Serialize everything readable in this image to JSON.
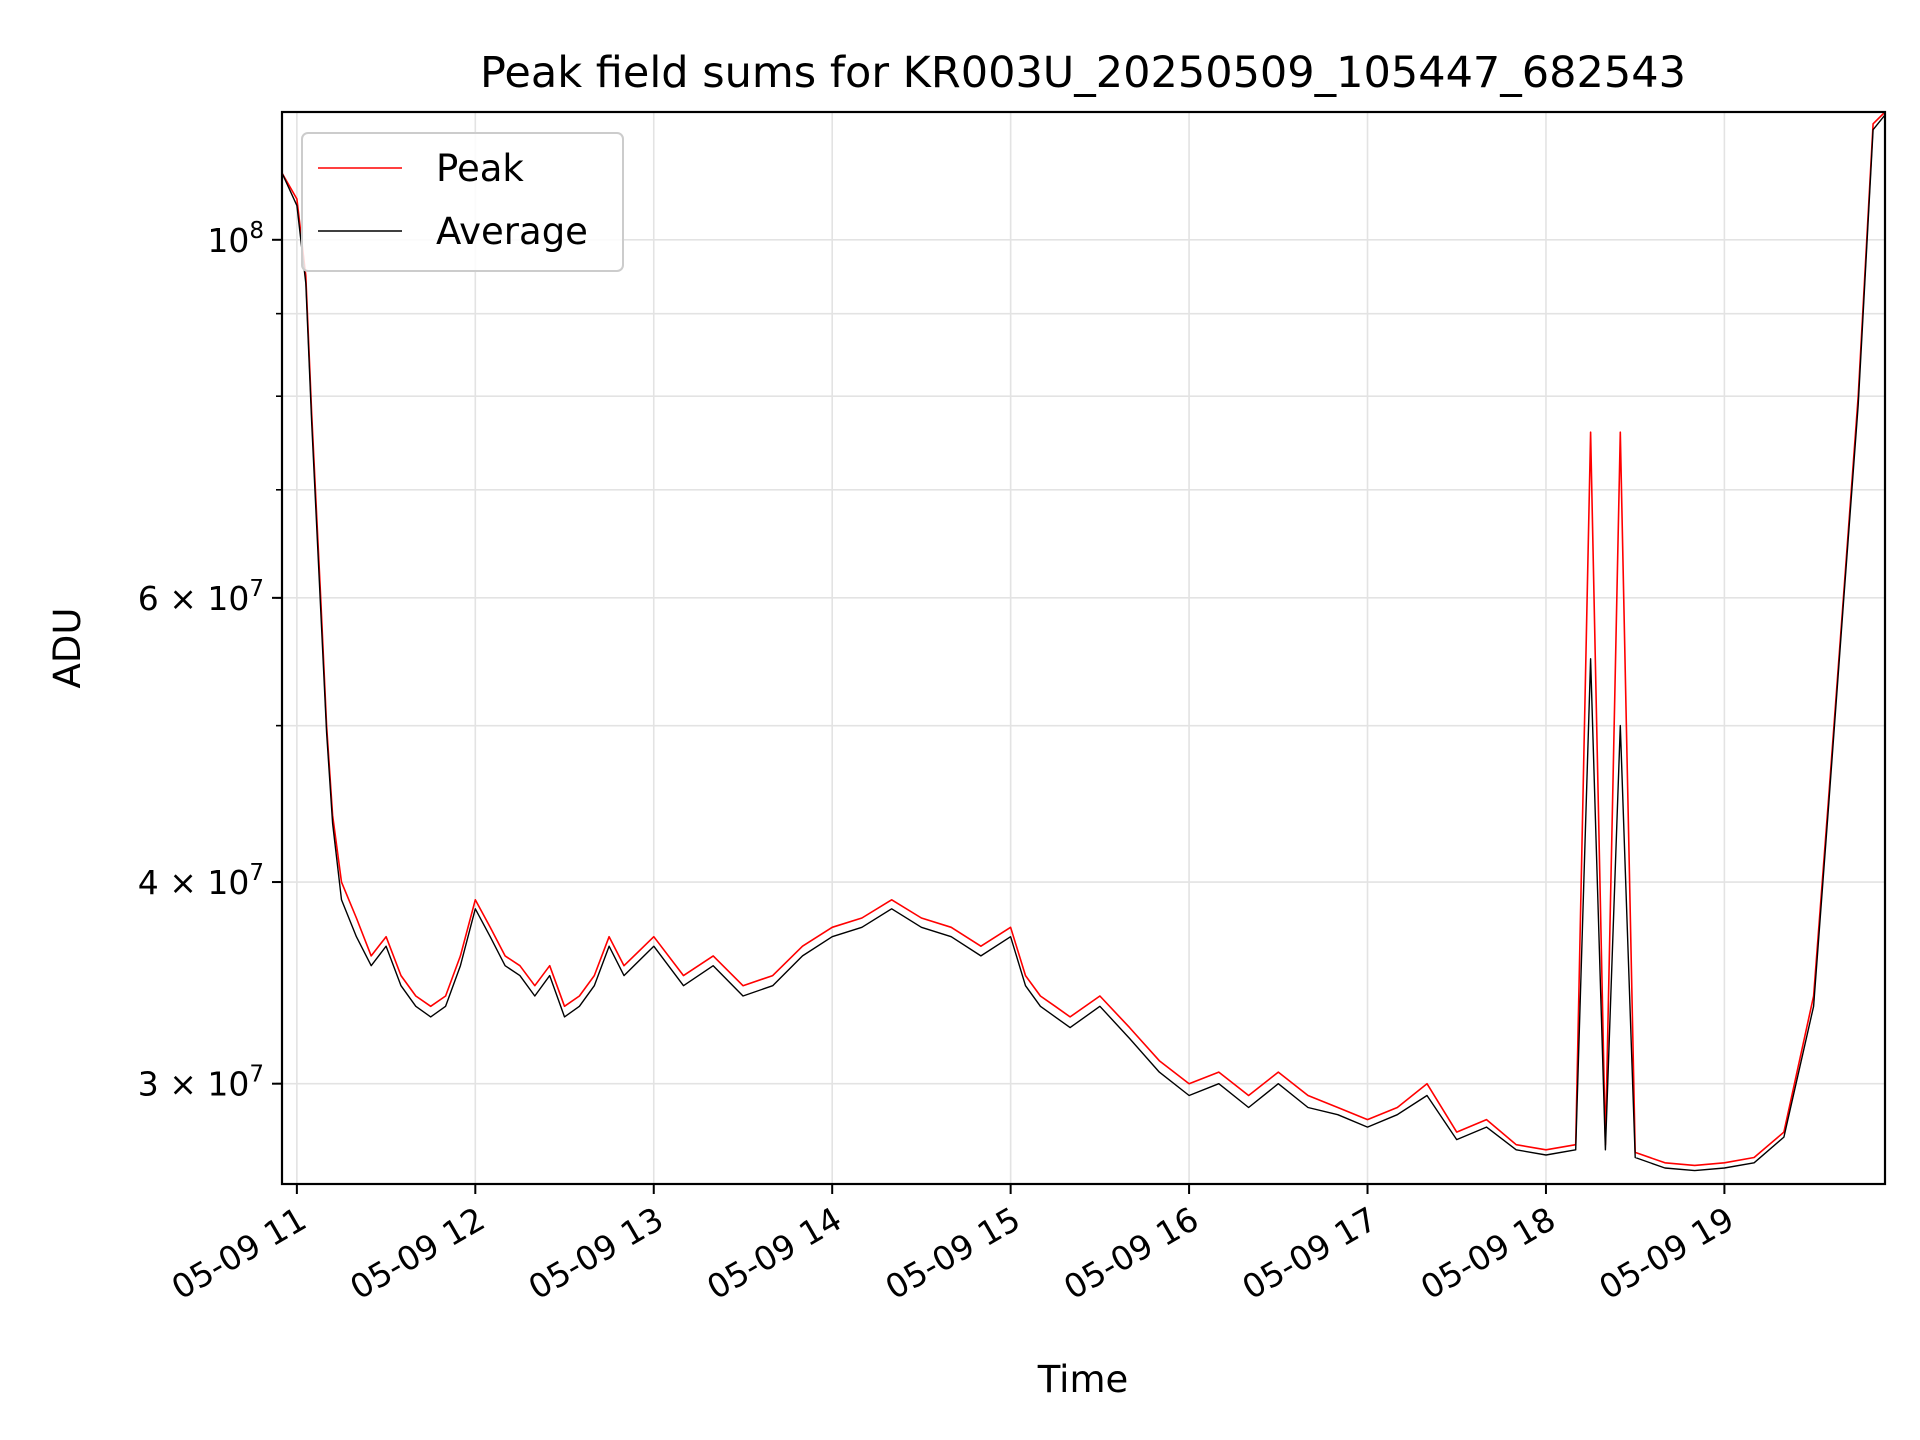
{
  "chart_data": {
    "type": "line",
    "title": "Peak field sums for KR003U_20250509_105447_682543",
    "xlabel": "Time",
    "ylabel": "ADU",
    "yscale": "log",
    "ylim": [
      26000000,
      120000000
    ],
    "xlim": [
      "2025-05-09 10:55",
      "2025-05-09 19:54"
    ],
    "grid": true,
    "legend_position": "upper-left",
    "x_tick_labels": [
      "05-09 11",
      "05-09 12",
      "05-09 13",
      "05-09 14",
      "05-09 15",
      "05-09 16",
      "05-09 17",
      "05-09 18",
      "05-09 19"
    ],
    "y_tick_labels": [
      {
        "value": 100000000,
        "base": "10",
        "exp": "8"
      },
      {
        "value": 60000000,
        "base": "6 × 10",
        "exp": "7"
      },
      {
        "value": 40000000,
        "base": "4 × 10",
        "exp": "7"
      },
      {
        "value": 30000000,
        "base": "3 × 10",
        "exp": "7"
      }
    ],
    "x": [
      "10:55",
      "11:00",
      "11:03",
      "11:05",
      "11:08",
      "11:10",
      "11:12",
      "11:15",
      "11:20",
      "11:25",
      "11:30",
      "11:35",
      "11:40",
      "11:45",
      "11:50",
      "11:55",
      "12:00",
      "12:05",
      "12:10",
      "12:15",
      "12:20",
      "12:25",
      "12:30",
      "12:35",
      "12:40",
      "12:45",
      "12:50",
      "13:00",
      "13:10",
      "13:20",
      "13:30",
      "13:40",
      "13:50",
      "14:00",
      "14:10",
      "14:20",
      "14:30",
      "14:40",
      "14:50",
      "15:00",
      "15:05",
      "15:10",
      "15:15",
      "15:20",
      "15:30",
      "15:40",
      "15:50",
      "16:00",
      "16:10",
      "16:20",
      "16:30",
      "16:40",
      "16:50",
      "17:00",
      "17:10",
      "17:20",
      "17:30",
      "17:40",
      "17:50",
      "18:00",
      "18:10",
      "18:15",
      "18:20",
      "18:25",
      "18:30",
      "18:40",
      "18:50",
      "19:00",
      "19:10",
      "19:20",
      "19:30",
      "19:35",
      "19:40",
      "19:45",
      "19:50",
      "19:54"
    ],
    "series": [
      {
        "name": "Peak",
        "color": "#ff0000",
        "values": [
          110000000,
          106000000,
          95000000,
          78000000,
          60000000,
          50000000,
          44000000,
          40000000,
          38000000,
          36000000,
          37000000,
          35000000,
          34000000,
          33500000,
          34000000,
          36000000,
          39000000,
          37500000,
          36000000,
          35500000,
          34500000,
          35500000,
          33500000,
          34000000,
          35000000,
          37000000,
          35500000,
          37000000,
          35000000,
          36000000,
          34500000,
          35000000,
          36500000,
          37500000,
          38000000,
          39000000,
          38000000,
          37500000,
          36500000,
          37500000,
          35000000,
          34000000,
          33500000,
          33000000,
          34000000,
          32500000,
          31000000,
          30000000,
          30500000,
          29500000,
          30500000,
          29500000,
          29000000,
          28500000,
          29000000,
          30000000,
          28000000,
          28500000,
          27500000,
          27300000,
          27500000,
          76000000,
          27500000,
          76000000,
          27200000,
          26800000,
          26700000,
          26800000,
          27000000,
          28000000,
          34000000,
          45000000,
          60000000,
          80000000,
          118000000,
          120000000
        ]
      },
      {
        "name": "Average",
        "color": "#000000",
        "values": [
          110000000,
          105000000,
          94000000,
          77000000,
          59000000,
          49500000,
          43500000,
          39000000,
          37000000,
          35500000,
          36500000,
          34500000,
          33500000,
          33000000,
          33500000,
          35500000,
          38500000,
          37000000,
          35500000,
          35000000,
          34000000,
          35000000,
          33000000,
          33500000,
          34500000,
          36500000,
          35000000,
          36500000,
          34500000,
          35500000,
          34000000,
          34500000,
          36000000,
          37000000,
          37500000,
          38500000,
          37500000,
          37000000,
          36000000,
          37000000,
          34500000,
          33500000,
          33000000,
          32500000,
          33500000,
          32000000,
          30500000,
          29500000,
          30000000,
          29000000,
          30000000,
          29000000,
          28700000,
          28200000,
          28700000,
          29500000,
          27700000,
          28200000,
          27300000,
          27100000,
          27300000,
          55000000,
          27300000,
          50000000,
          27000000,
          26600000,
          26500000,
          26600000,
          26800000,
          27800000,
          33500000,
          44500000,
          59500000,
          79000000,
          117000000,
          119500000
        ]
      }
    ]
  }
}
